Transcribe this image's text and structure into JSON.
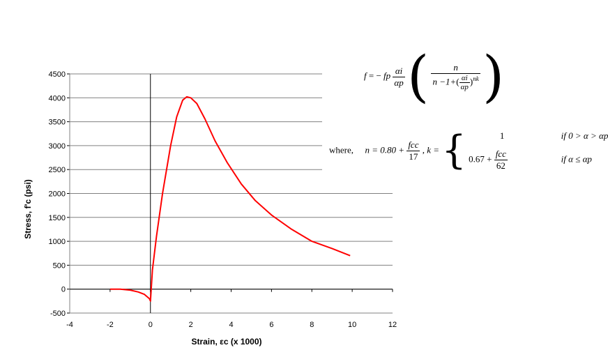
{
  "chart_data": {
    "type": "line",
    "xlabel": "Strain, εc (x 1000)",
    "ylabel": "Stress, f'c (psi)",
    "xlim": [
      -4,
      12
    ],
    "ylim": [
      -500,
      4500
    ],
    "xticks": [
      "-4",
      "-2",
      "0",
      "2",
      "4",
      "6",
      "8",
      "10",
      "12"
    ],
    "yticks": [
      "-500",
      "0",
      "500",
      "1000",
      "1500",
      "2000",
      "2500",
      "3000",
      "3500",
      "4000",
      "4500"
    ],
    "grid": "horizontal",
    "series": [
      {
        "color": "#ff0000",
        "x": [
          -2,
          -1.5,
          -1.0,
          -0.6,
          -0.3,
          -0.05,
          0.0,
          0.1,
          0.3,
          0.6,
          1.0,
          1.3,
          1.6,
          1.8,
          2.0,
          2.3,
          2.7,
          3.2,
          3.8,
          4.5,
          5.2,
          6.0,
          7.0,
          8.0,
          9.0,
          9.9
        ],
        "y": [
          0,
          0,
          -20,
          -60,
          -110,
          -200,
          -250,
          400,
          1100,
          2000,
          3000,
          3600,
          3950,
          4020,
          4000,
          3880,
          3560,
          3100,
          2650,
          2200,
          1850,
          1550,
          1250,
          1000,
          850,
          700
        ]
      }
    ]
  },
  "equation": {
    "lhs": "f",
    "eq_sign": "= −",
    "fp": "fp",
    "ai": "αi",
    "ap": "αp",
    "n": "n",
    "den_prefix": "n −1+",
    "exp": "nk",
    "where": "where,",
    "n_def": "n = 0.80 +",
    "fcc": "fcc",
    "n_den": "17",
    "k_def": ", k =",
    "case1_val": "1",
    "case1_cond": "if 0 > α > αp",
    "case2_prefix": "0.67 +",
    "case2_den": "62",
    "case2_cond": "if α ≤ αp"
  }
}
